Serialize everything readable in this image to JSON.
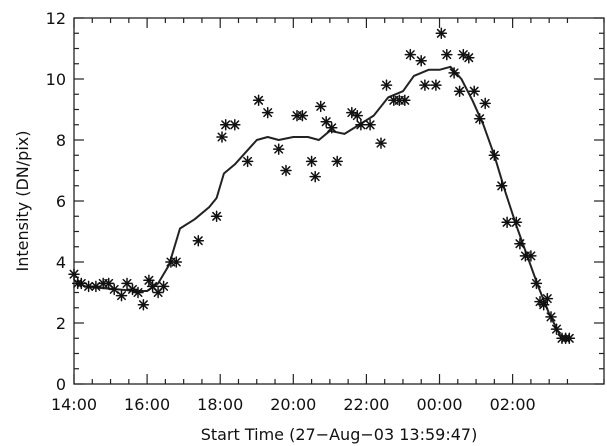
{
  "chart_data": {
    "type": "scatter",
    "xlabel": "Start Time (27−Aug−03 13:59:47)",
    "ylabel": "Intensity (DN/pix)",
    "x_unit": "hours since 14:00 on 27-Aug-03",
    "xlim": [
      0,
      14.5
    ],
    "ylim": [
      0,
      12
    ],
    "x_ticks": [
      {
        "value": 0,
        "label": "14:00"
      },
      {
        "value": 2,
        "label": "16:00"
      },
      {
        "value": 4,
        "label": "18:00"
      },
      {
        "value": 6,
        "label": "20:00"
      },
      {
        "value": 8,
        "label": "22:00"
      },
      {
        "value": 10,
        "label": "00:00"
      },
      {
        "value": 12,
        "label": "02:00"
      }
    ],
    "y_ticks": [
      {
        "value": 0,
        "label": "0"
      },
      {
        "value": 2,
        "label": "2"
      },
      {
        "value": 4,
        "label": "4"
      },
      {
        "value": 6,
        "label": "6"
      },
      {
        "value": 8,
        "label": "8"
      },
      {
        "value": 10,
        "label": "10"
      },
      {
        "value": 12,
        "label": "12"
      }
    ],
    "x_minor_step": 0.5,
    "y_minor_step": 0.5,
    "grid": false,
    "marker_color": "#111111",
    "line_color": "#222222",
    "series": [
      {
        "marker": "asterisk",
        "style": "markers",
        "points": [
          [
            0.0,
            3.6
          ],
          [
            0.1,
            3.3
          ],
          [
            0.2,
            3.3
          ],
          [
            0.4,
            3.2
          ],
          [
            0.6,
            3.2
          ],
          [
            0.8,
            3.3
          ],
          [
            0.95,
            3.3
          ],
          [
            1.1,
            3.1
          ],
          [
            1.3,
            2.9
          ],
          [
            1.45,
            3.3
          ],
          [
            1.6,
            3.1
          ],
          [
            1.75,
            3.0
          ],
          [
            1.9,
            2.6
          ],
          [
            2.05,
            3.4
          ],
          [
            2.15,
            3.2
          ],
          [
            2.3,
            3.0
          ],
          [
            2.45,
            3.2
          ],
          [
            2.65,
            4.0
          ],
          [
            2.8,
            4.0
          ],
          [
            3.4,
            4.7
          ],
          [
            3.9,
            5.5
          ],
          [
            4.05,
            8.1
          ],
          [
            4.15,
            8.5
          ],
          [
            4.4,
            8.5
          ],
          [
            4.75,
            7.3
          ],
          [
            5.05,
            9.3
          ],
          [
            5.3,
            8.9
          ],
          [
            5.6,
            7.7
          ],
          [
            5.8,
            7.0
          ],
          [
            6.1,
            8.8
          ],
          [
            6.25,
            8.8
          ],
          [
            6.5,
            7.3
          ],
          [
            6.6,
            6.8
          ],
          [
            6.75,
            9.1
          ],
          [
            6.9,
            8.6
          ],
          [
            7.05,
            8.4
          ],
          [
            7.2,
            7.3
          ],
          [
            7.6,
            8.9
          ],
          [
            7.75,
            8.8
          ],
          [
            7.85,
            8.5
          ],
          [
            8.1,
            8.5
          ],
          [
            8.4,
            7.9
          ],
          [
            8.55,
            9.8
          ],
          [
            8.75,
            9.3
          ],
          [
            8.9,
            9.3
          ],
          [
            9.05,
            9.3
          ],
          [
            9.2,
            10.8
          ],
          [
            9.5,
            10.6
          ],
          [
            9.6,
            9.8
          ],
          [
            9.9,
            9.8
          ],
          [
            10.05,
            11.5
          ],
          [
            10.2,
            10.8
          ],
          [
            10.4,
            10.2
          ],
          [
            10.55,
            9.6
          ],
          [
            10.65,
            10.8
          ],
          [
            10.8,
            10.7
          ],
          [
            10.95,
            9.6
          ],
          [
            11.1,
            8.7
          ],
          [
            11.25,
            9.2
          ],
          [
            11.5,
            7.5
          ],
          [
            11.7,
            6.5
          ],
          [
            11.85,
            5.3
          ],
          [
            12.1,
            5.3
          ],
          [
            12.2,
            4.6
          ],
          [
            12.35,
            4.2
          ],
          [
            12.5,
            4.2
          ],
          [
            12.65,
            3.3
          ],
          [
            12.75,
            2.7
          ],
          [
            12.85,
            2.6
          ],
          [
            12.95,
            2.8
          ],
          [
            13.05,
            2.2
          ],
          [
            13.2,
            1.8
          ],
          [
            13.35,
            1.5
          ],
          [
            13.45,
            1.5
          ],
          [
            13.55,
            1.5
          ]
        ]
      },
      {
        "style": "line",
        "points": [
          [
            0.0,
            3.4
          ],
          [
            0.3,
            3.2
          ],
          [
            0.7,
            3.15
          ],
          [
            1.2,
            3.1
          ],
          [
            1.7,
            3.05
          ],
          [
            2.0,
            3.05
          ],
          [
            2.3,
            3.3
          ],
          [
            2.6,
            3.9
          ],
          [
            2.9,
            5.1
          ],
          [
            3.3,
            5.4
          ],
          [
            3.7,
            5.8
          ],
          [
            3.9,
            6.1
          ],
          [
            4.1,
            6.9
          ],
          [
            4.4,
            7.2
          ],
          [
            4.7,
            7.6
          ],
          [
            5.0,
            8.0
          ],
          [
            5.3,
            8.1
          ],
          [
            5.6,
            8.0
          ],
          [
            6.0,
            8.1
          ],
          [
            6.4,
            8.1
          ],
          [
            6.7,
            8.0
          ],
          [
            7.0,
            8.3
          ],
          [
            7.4,
            8.2
          ],
          [
            7.8,
            8.5
          ],
          [
            8.2,
            8.8
          ],
          [
            8.6,
            9.4
          ],
          [
            9.0,
            9.6
          ],
          [
            9.3,
            10.1
          ],
          [
            9.7,
            10.3
          ],
          [
            10.0,
            10.3
          ],
          [
            10.3,
            10.4
          ],
          [
            10.6,
            10.0
          ],
          [
            10.9,
            9.3
          ],
          [
            11.2,
            8.5
          ],
          [
            11.5,
            7.5
          ],
          [
            11.8,
            6.3
          ],
          [
            12.1,
            5.2
          ],
          [
            12.4,
            4.2
          ],
          [
            12.7,
            3.2
          ],
          [
            13.0,
            2.3
          ],
          [
            13.3,
            1.6
          ],
          [
            13.55,
            1.5
          ]
        ]
      }
    ]
  }
}
